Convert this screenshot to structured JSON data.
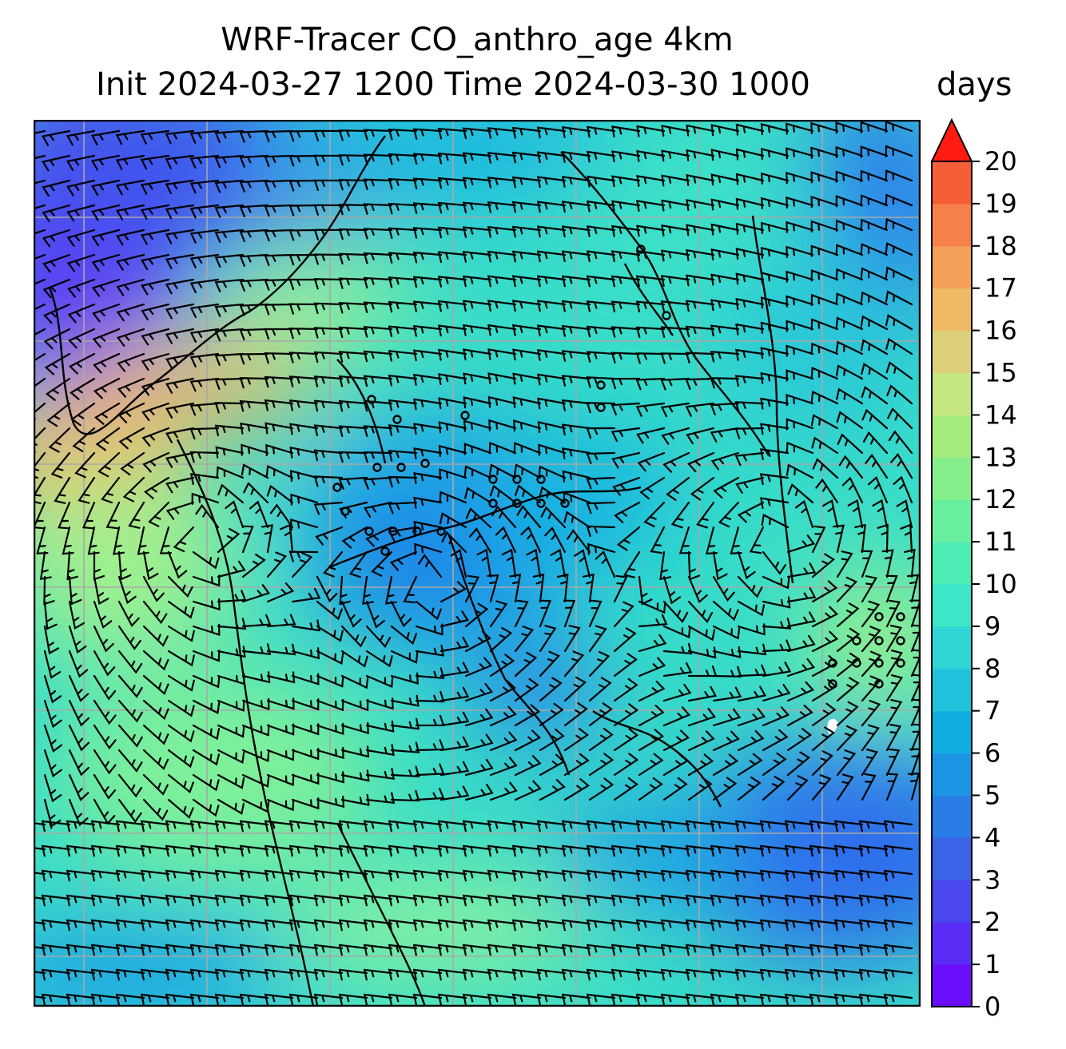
{
  "title": {
    "line1": "WRF-Tracer CO_anthro_age 4km",
    "line2": "Init 2024-03-27 1200 Time 2024-03-30 1000",
    "units": "days"
  },
  "colorbar": {
    "ticks": [
      "0",
      "1",
      "2",
      "3",
      "4",
      "5",
      "6",
      "7",
      "8",
      "9",
      "10",
      "11",
      "12",
      "13",
      "14",
      "15",
      "16",
      "17",
      "18",
      "19",
      "20"
    ],
    "colors": [
      "#6a0dfb",
      "#5a2cf5",
      "#4a48ee",
      "#3a63e8",
      "#2a7ce6",
      "#1b95e4",
      "#10aee0",
      "#1fc4dc",
      "#2ed6d6",
      "#3de6c8",
      "#4eedb5",
      "#68f09f",
      "#86ef8c",
      "#a6ec7e",
      "#c6e684",
      "#ddd07c",
      "#eeba66",
      "#f5a05a",
      "#f68049",
      "#f45f38",
      "#f2402a"
    ],
    "extend_color": "#ff1a12"
  },
  "map": {
    "field": "CO_anthro_age",
    "dominant_colors": {
      "low": "#5b3cf5",
      "mid_low": "#1fa8e6",
      "mid": "#38e0c8",
      "mid_high": "#9cf08a",
      "high": "#f2b866"
    },
    "gridlines": "on",
    "wind_barbs": "on",
    "coastlines": "on"
  }
}
